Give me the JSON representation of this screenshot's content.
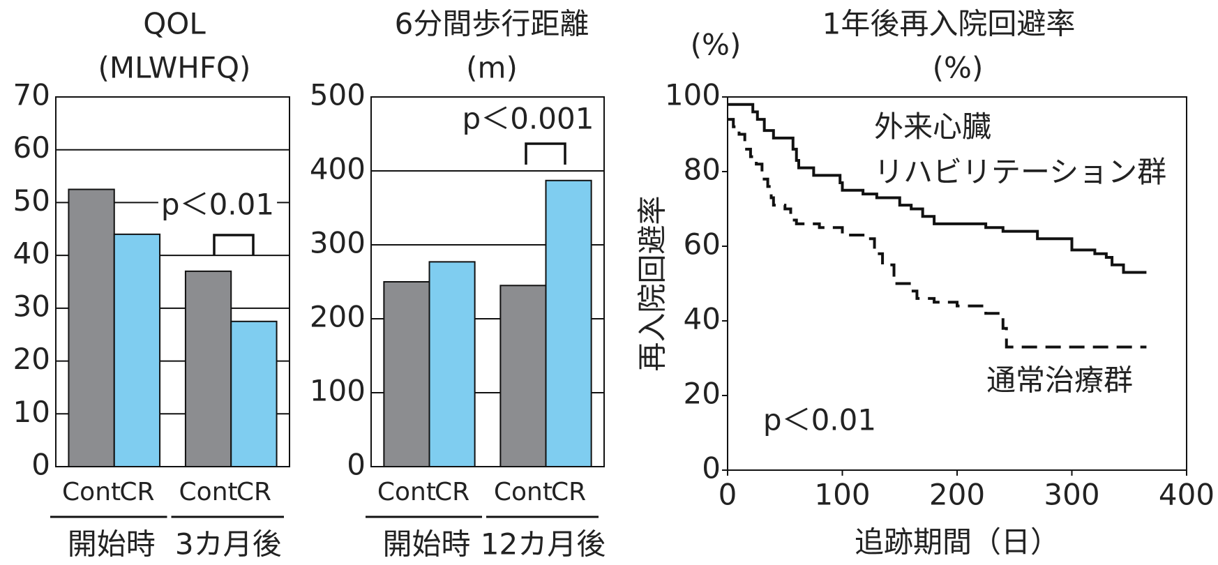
{
  "chart_data": [
    {
      "type": "bar",
      "title": "QOL",
      "subtitle": "(MLWHFQ)",
      "categories": [
        "Cont",
        "CR",
        "Cont",
        "CR"
      ],
      "groups": [
        "開始時",
        "3カ月後"
      ],
      "values": [
        52.5,
        44,
        37,
        27.5
      ],
      "colors": [
        "#8c8d90",
        "#7fcdf0",
        "#8c8d90",
        "#7fcdf0"
      ],
      "ylim": [
        0,
        70
      ],
      "yticks": [
        0,
        10,
        20,
        30,
        40,
        50,
        60,
        70
      ],
      "grid": true,
      "annotation": "p＜0.01"
    },
    {
      "type": "bar",
      "title": "6分間歩行距離",
      "subtitle": "(m)",
      "categories": [
        "Cont",
        "CR",
        "Cont",
        "CR"
      ],
      "groups": [
        "開始時",
        "12カ月後"
      ],
      "values": [
        250,
        277,
        245,
        387
      ],
      "colors": [
        "#8c8d90",
        "#7fcdf0",
        "#8c8d90",
        "#7fcdf0"
      ],
      "ylim": [
        0,
        500
      ],
      "yticks": [
        0,
        100,
        200,
        300,
        400,
        500
      ],
      "grid": true,
      "annotation": "p＜0.001"
    },
    {
      "type": "line",
      "title": "1年後再入院回避率",
      "subtitle": "(%)",
      "y_unit": "(%)",
      "ylabel": "再入院回避率",
      "xlabel": "追跡期間（日）",
      "xlim": [
        0,
        400
      ],
      "xticks": [
        0,
        100,
        200,
        300,
        400
      ],
      "ylim": [
        0,
        100
      ],
      "yticks": [
        0,
        20,
        40,
        60,
        80,
        100
      ],
      "step": true,
      "series": [
        {
          "name": "外来心臓\nリハビリテーション群",
          "color": "#111111",
          "dashed": false,
          "x": [
            0,
            22,
            26,
            32,
            40,
            57,
            60,
            62,
            75,
            98,
            100,
            118,
            130,
            150,
            160,
            170,
            180,
            225,
            240,
            270,
            300,
            320,
            330,
            335,
            345,
            365
          ],
          "values": [
            98,
            96,
            94,
            91,
            89,
            86,
            83,
            81,
            79,
            77,
            75,
            74,
            73,
            71,
            70,
            68,
            66,
            65,
            64,
            62,
            59,
            58,
            57,
            55,
            53,
            53
          ]
        },
        {
          "name": "通常治療群",
          "color": "#111111",
          "dashed": true,
          "x": [
            0,
            5,
            10,
            15,
            20,
            25,
            30,
            35,
            38,
            40,
            50,
            55,
            60,
            80,
            100,
            120,
            128,
            135,
            145,
            160,
            165,
            180,
            200,
            225,
            240,
            243,
            365
          ],
          "values": [
            94,
            92,
            90,
            86,
            84,
            82,
            78,
            76,
            73,
            71,
            70,
            67,
            66,
            65,
            63,
            62,
            58,
            55,
            50,
            48,
            46,
            45,
            44,
            42,
            38,
            33,
            33
          ]
        }
      ],
      "annotation": "p＜0.01"
    }
  ]
}
